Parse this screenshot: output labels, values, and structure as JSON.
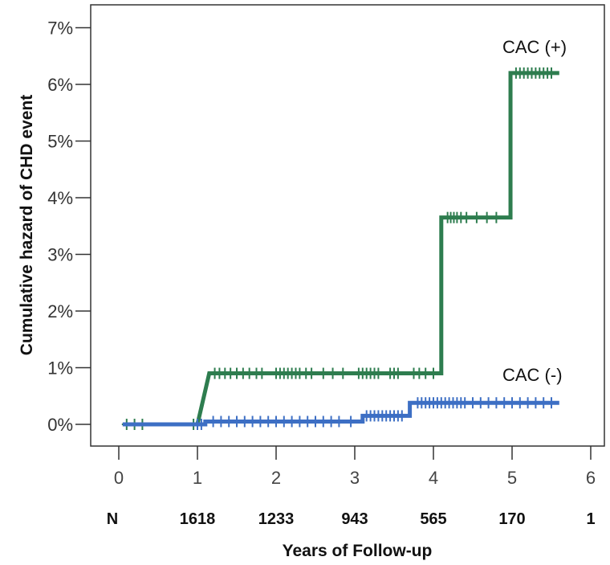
{
  "chart_data": {
    "type": "line",
    "title": "",
    "xlabel": "Years of Follow-up",
    "ylabel": "Cumulative hazard of CHD event",
    "xlim": [
      0,
      6
    ],
    "ylim": [
      0,
      7
    ],
    "x_ticks": [
      "0",
      "1",
      "2",
      "3",
      "4",
      "5",
      "6"
    ],
    "y_ticks": [
      "0%",
      "1%",
      "2%",
      "3%",
      "4%",
      "5%",
      "6%",
      "7%"
    ],
    "at_risk_label": "N",
    "at_risk": [
      "1618",
      "1233",
      "943",
      "565",
      "170",
      "1"
    ],
    "series": [
      {
        "name": "CAC (+)",
        "color": "#2e7d4f",
        "step_points": [
          [
            0.05,
            0
          ],
          [
            1.0,
            0
          ],
          [
            1.15,
            0.9
          ],
          [
            4.1,
            0.9
          ],
          [
            4.1,
            3.65
          ],
          [
            4.98,
            3.65
          ],
          [
            4.98,
            6.2
          ],
          [
            5.6,
            6.2
          ]
        ],
        "censor_x": [
          0.1,
          0.2,
          0.3,
          0.95,
          1.22,
          1.28,
          1.35,
          1.42,
          1.5,
          1.58,
          1.66,
          1.75,
          1.82,
          2.0,
          2.05,
          2.1,
          2.15,
          2.2,
          2.25,
          2.3,
          2.38,
          2.45,
          2.6,
          2.72,
          2.85,
          3.05,
          3.1,
          3.15,
          3.2,
          3.25,
          3.3,
          3.45,
          3.5,
          3.55,
          3.75,
          3.82,
          3.9,
          4.0,
          4.18,
          4.22,
          4.26,
          4.3,
          4.35,
          4.42,
          4.55,
          4.68,
          4.8,
          5.05,
          5.1,
          5.15,
          5.2,
          5.25,
          5.3,
          5.35,
          5.4,
          5.45,
          5.5
        ]
      },
      {
        "name": "CAC (-)",
        "color": "#3d6fc4",
        "step_points": [
          [
            0.05,
            0
          ],
          [
            1.1,
            0
          ],
          [
            1.1,
            0.05
          ],
          [
            3.1,
            0.05
          ],
          [
            3.1,
            0.15
          ],
          [
            3.7,
            0.15
          ],
          [
            3.7,
            0.38
          ],
          [
            5.6,
            0.38
          ]
        ],
        "censor_x": [
          1.0,
          1.05,
          1.2,
          1.3,
          1.4,
          1.5,
          1.6,
          1.7,
          1.8,
          1.9,
          2.0,
          2.1,
          2.2,
          2.3,
          2.4,
          2.5,
          2.6,
          2.7,
          2.8,
          2.95,
          3.15,
          3.2,
          3.25,
          3.3,
          3.35,
          3.4,
          3.45,
          3.5,
          3.55,
          3.6,
          3.8,
          3.85,
          3.9,
          3.95,
          4.0,
          4.05,
          4.1,
          4.15,
          4.2,
          4.25,
          4.3,
          4.35,
          4.4,
          4.5,
          4.6,
          4.7,
          4.8,
          4.9,
          5.0,
          5.1,
          5.2,
          5.3,
          5.4,
          5.5
        ]
      }
    ],
    "grid": false
  },
  "colors": {
    "axis": "#333333",
    "cac_pos": "#2e7d4f",
    "cac_neg": "#3d6fc4"
  }
}
